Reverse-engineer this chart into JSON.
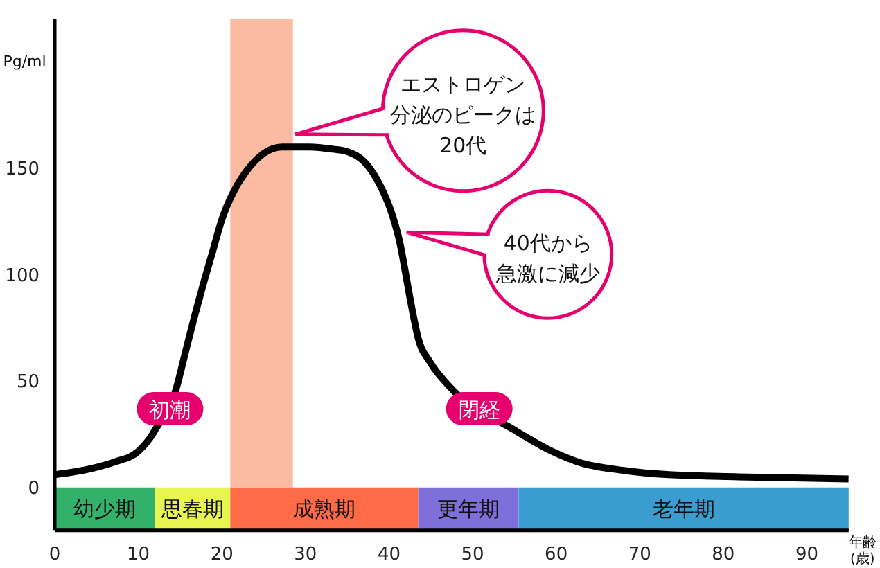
{
  "chart_data": {
    "type": "line",
    "xlabel": "年齢\n(歳)",
    "ylabel": "Pg/ml",
    "x": [
      0,
      4.5,
      7.2,
      10,
      11.7,
      12,
      14.5,
      15.6,
      16.7,
      17.8,
      18.9,
      20,
      21.4,
      23,
      25,
      27.2,
      30.5,
      33.3,
      34.9,
      37.7,
      39.3,
      40.4,
      41.3,
      42.1,
      42.7,
      43.5,
      44.9,
      47.1,
      50.8,
      55,
      59.5,
      62.6,
      68.1,
      73.5,
      81.8,
      95
    ],
    "series": [
      {
        "color": "#000000",
        "values": [
          6,
          9,
          12,
          17,
          25,
          27,
          46,
          63,
          80,
          96,
          111,
          126,
          139,
          149,
          157,
          160,
          160,
          159,
          158,
          150,
          139,
          128,
          115,
          98,
          85,
          70,
          59,
          48,
          null,
          27,
          17,
          12,
          8,
          6,
          5,
          4
        ]
      }
    ],
    "xlim": [
      0,
      95
    ],
    "xticks": [
      0,
      10,
      20,
      30,
      40,
      50,
      60,
      70,
      80,
      90
    ],
    "ylim": [
      -20,
      220
    ],
    "yticks": [
      0,
      50,
      100,
      150
    ],
    "marker": "none",
    "line_style": "solid",
    "bands": [
      {
        "axis": "x",
        "from": 21,
        "to": 28.5,
        "color": "#fbbba3"
      },
      {
        "axis": "x",
        "from": 0,
        "to": 12,
        "label": "幼少期",
        "color": "#33b06a"
      },
      {
        "axis": "x",
        "from": 12,
        "to": 21,
        "label": "思春期",
        "color": "#e8f550"
      },
      {
        "axis": "x",
        "from": 21,
        "to": 43.5,
        "label": "成熟期",
        "color": "#ff6a47"
      },
      {
        "axis": "x",
        "from": 43.5,
        "to": 55.5,
        "label": "更年期",
        "color": "#7f6fdb"
      },
      {
        "axis": "x",
        "from": 55.5,
        "to": 95,
        "label": "老年期",
        "color": "#3b9dcf"
      }
    ],
    "annotations": [
      {
        "text": "エストロゲン分泌のピークは20代",
        "x": 28.8,
        "y": 166
      },
      {
        "text": "40代から急激に減少",
        "x": 42.1,
        "y": 120
      },
      {
        "text": "初潮",
        "x": 13.8,
        "y": 37
      },
      {
        "text": "閉経",
        "x": 50.8,
        "y": 37
      }
    ]
  }
}
